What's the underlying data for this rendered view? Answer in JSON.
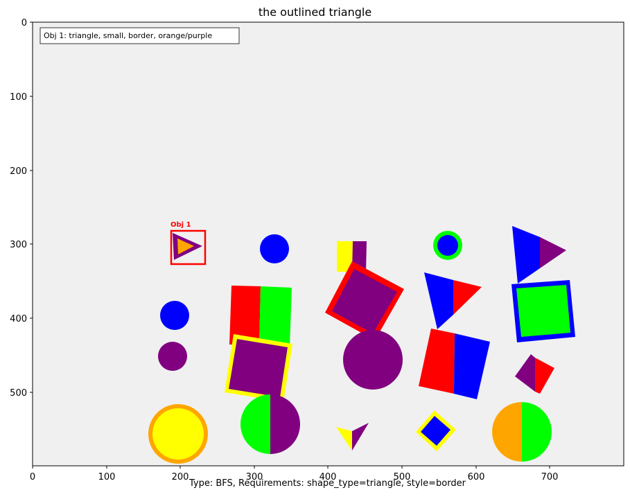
{
  "title": "the outlined triangle",
  "caption": "Type: BFS, Requirements: shape_type=triangle, style=border",
  "legend": "Obj 1: triangle, small, border, orange/purple",
  "annotation": "Obj 1",
  "x_ticks": [
    "0",
    "100",
    "200",
    "300",
    "400",
    "500",
    "600",
    "700"
  ],
  "y_ticks": [
    "0",
    "100",
    "200",
    "300",
    "400",
    "500"
  ],
  "colors": {
    "plot_background": "#f0f0f0",
    "annotation_box": "#ff0000",
    "red": "#ff0000",
    "green": "#00ff00",
    "blue": "#0000ff",
    "purple": "#800080",
    "yellow": "#ffff00",
    "orange": "#ffa500"
  }
}
